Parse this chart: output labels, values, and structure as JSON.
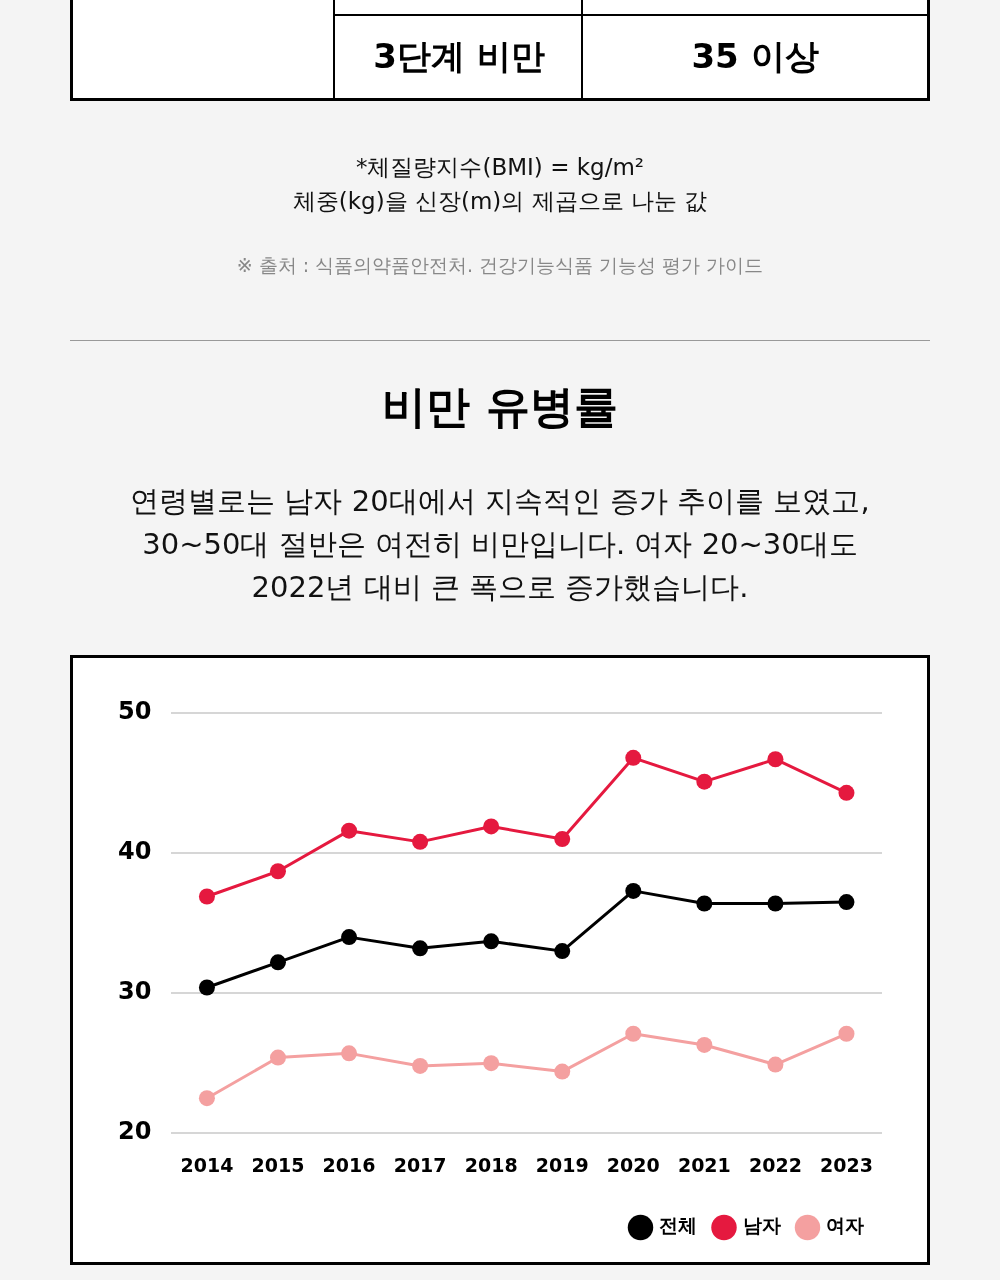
{
  "chart_data": {
    "type": "line",
    "title": "비만 유병률",
    "subtitle": "연령별로는 남자 20대에서 지속적인 증가 추이를 보였고,\n30~50대 절반은 여전히 비만입니다. 여자 20~30대도\n2022년 대비 큰 폭으로 증가했습니다.",
    "annotations": [
      "3단계 비만",
      "35 이상",
      "*체질량지수(BMI) = kg/m²",
      "체중(kg)을 신장(m)의 제곱으로 나눈 값",
      "※ 출처 : 식품의약품안전처. 건강기능식품 기능성 평가 가이드"
    ],
    "categories": [
      "2014",
      "2015",
      "2016",
      "2017",
      "2018",
      "2019",
      "2020",
      "2021",
      "2022",
      "2023"
    ],
    "series": [
      {
        "name": "전체",
        "color": "#000000",
        "values": [
          30.4,
          32.2,
          34.0,
          33.2,
          33.7,
          33.0,
          37.3,
          36.4,
          36.4,
          36.5
        ]
      },
      {
        "name": "남자",
        "color": "#e5193f",
        "values": [
          36.9,
          38.7,
          41.6,
          40.8,
          41.9,
          41.0,
          46.8,
          45.1,
          46.7,
          44.3
        ]
      },
      {
        "name": "여자",
        "color": "#f4a0a0",
        "values": [
          22.5,
          25.4,
          25.7,
          24.8,
          25.0,
          24.4,
          27.1,
          26.3,
          24.9,
          27.1
        ]
      }
    ],
    "ylim": [
      20,
      50
    ],
    "yticks": [
      20,
      30,
      40,
      50
    ],
    "grid": "y",
    "legend": "bottom right",
    "marker": "circle",
    "line_style": "solid"
  }
}
